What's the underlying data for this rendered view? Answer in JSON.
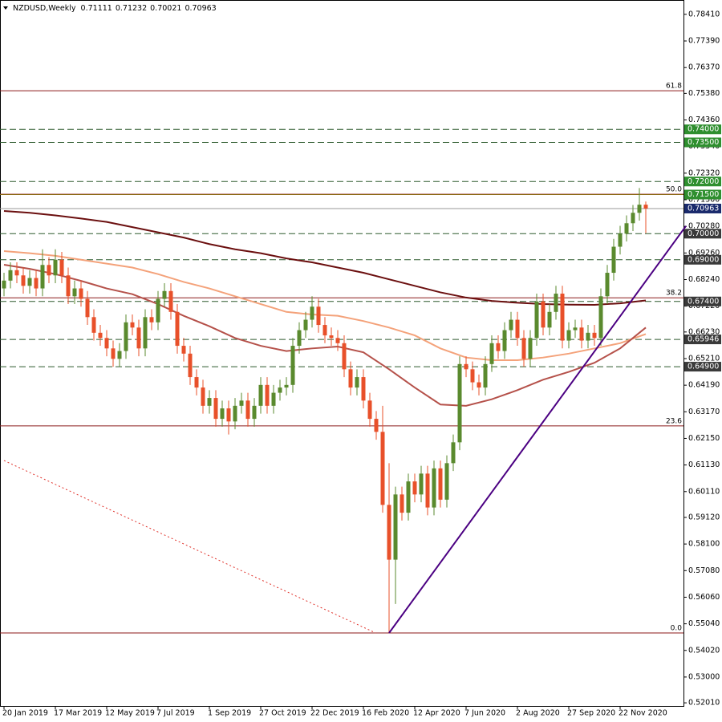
{
  "chart_data": {
    "type": "candlestick",
    "symbol": "NZDUSD,Weekly",
    "categories": [
      "20 Jan 2019",
      null,
      null,
      null,
      null,
      null,
      null,
      null,
      "17 Mar 2019",
      null,
      null,
      null,
      null,
      null,
      null,
      null,
      "12 May 2019",
      null,
      null,
      null,
      null,
      null,
      null,
      null,
      "7 Jul 2019",
      null,
      null,
      null,
      null,
      null,
      null,
      null,
      "1 Sep 2019",
      null,
      null,
      null,
      null,
      null,
      null,
      null,
      "27 Oct 2019",
      null,
      null,
      null,
      null,
      null,
      null,
      null,
      "22 Dec 2019",
      null,
      null,
      null,
      null,
      null,
      null,
      null,
      "16 Feb 2020",
      null,
      null,
      null,
      null,
      null,
      null,
      null,
      "12 Apr 2020",
      null,
      null,
      null,
      null,
      null,
      null,
      null,
      "7 Jun 2020",
      null,
      null,
      null,
      null,
      null,
      null,
      null,
      "2 Aug 2020",
      null,
      null,
      null,
      null,
      null,
      null,
      null,
      "27 Sep 2020",
      null,
      null,
      null,
      null,
      null,
      null,
      null,
      "22 Nov 2020",
      null,
      null,
      null,
      null
    ],
    "open": [
      0.679,
      0.682,
      0.686,
      0.684,
      0.68,
      0.683,
      0.679,
      0.688,
      0.684,
      0.69,
      0.684,
      0.676,
      0.679,
      0.675,
      0.668,
      0.662,
      0.66,
      0.656,
      0.652,
      0.655,
      0.666,
      0.664,
      0.656,
      0.668,
      0.666,
      0.675,
      0.678,
      0.67,
      0.657,
      0.654,
      0.645,
      0.641,
      0.634,
      0.637,
      0.629,
      0.633,
      0.628,
      0.634,
      0.636,
      0.629,
      0.634,
      0.642,
      0.634,
      0.639,
      0.641,
      0.642,
      0.657,
      0.663,
      0.667,
      0.672,
      0.665,
      0.661,
      0.66,
      0.658,
      0.648,
      0.641,
      0.645,
      0.636,
      0.629,
      0.624,
      0.596,
      0.575,
      0.6,
      0.593,
      0.605,
      0.6,
      0.608,
      0.595,
      0.61,
      0.598,
      0.612,
      0.62,
      0.65,
      0.648,
      0.643,
      0.641,
      0.65,
      0.658,
      0.655,
      0.663,
      0.667,
      0.66,
      0.652,
      0.66,
      0.674,
      0.664,
      0.67,
      0.677,
      0.659,
      0.663,
      0.664,
      0.659,
      0.662,
      0.66,
      0.676,
      0.685,
      0.695,
      0.7,
      0.704,
      0.708,
      0.71111
    ],
    "high": [
      0.685,
      0.689,
      0.689,
      0.687,
      0.686,
      0.686,
      0.694,
      0.691,
      0.694,
      0.693,
      0.687,
      0.682,
      0.682,
      0.678,
      0.671,
      0.665,
      0.663,
      0.659,
      0.658,
      0.669,
      0.669,
      0.667,
      0.671,
      0.671,
      0.678,
      0.681,
      0.681,
      0.673,
      0.66,
      0.657,
      0.648,
      0.644,
      0.64,
      0.64,
      0.636,
      0.636,
      0.637,
      0.639,
      0.639,
      0.637,
      0.645,
      0.645,
      0.642,
      0.644,
      0.645,
      0.66,
      0.666,
      0.67,
      0.676,
      0.675,
      0.668,
      0.664,
      0.663,
      0.661,
      0.651,
      0.648,
      0.648,
      0.639,
      0.632,
      0.634,
      0.612,
      0.603,
      0.603,
      0.608,
      0.608,
      0.611,
      0.611,
      0.613,
      0.613,
      0.615,
      0.623,
      0.653,
      0.653,
      0.651,
      0.646,
      0.653,
      0.661,
      0.661,
      0.666,
      0.67,
      0.67,
      0.663,
      0.663,
      0.677,
      0.677,
      0.673,
      0.68,
      0.68,
      0.666,
      0.667,
      0.667,
      0.665,
      0.665,
      0.679,
      0.688,
      0.698,
      0.703,
      0.707,
      0.711,
      0.7175,
      0.71232
    ],
    "low": [
      0.676,
      0.679,
      0.681,
      0.677,
      0.677,
      0.676,
      0.676,
      0.681,
      0.681,
      0.681,
      0.673,
      0.673,
      0.672,
      0.665,
      0.659,
      0.657,
      0.653,
      0.649,
      0.649,
      0.652,
      0.661,
      0.653,
      0.653,
      0.663,
      0.663,
      0.672,
      0.667,
      0.654,
      0.651,
      0.642,
      0.638,
      0.631,
      0.631,
      0.626,
      0.626,
      0.623,
      0.625,
      0.631,
      0.626,
      0.626,
      0.631,
      0.631,
      0.631,
      0.636,
      0.638,
      0.639,
      0.654,
      0.66,
      0.664,
      0.662,
      0.658,
      0.657,
      0.655,
      0.645,
      0.638,
      0.638,
      0.633,
      0.626,
      0.621,
      0.593,
      0.547,
      0.558,
      0.59,
      0.59,
      0.597,
      0.597,
      0.592,
      0.592,
      0.595,
      0.595,
      0.609,
      0.617,
      0.645,
      0.64,
      0.638,
      0.638,
      0.647,
      0.652,
      0.652,
      0.66,
      0.657,
      0.649,
      0.649,
      0.657,
      0.661,
      0.661,
      0.667,
      0.656,
      0.656,
      0.66,
      0.656,
      0.656,
      0.657,
      0.657,
      0.673,
      0.682,
      0.692,
      0.697,
      0.701,
      0.705,
      0.70021
    ],
    "close": [
      0.682,
      0.686,
      0.684,
      0.68,
      0.683,
      0.679,
      0.688,
      0.684,
      0.69,
      0.684,
      0.676,
      0.679,
      0.675,
      0.668,
      0.662,
      0.66,
      0.656,
      0.652,
      0.655,
      0.666,
      0.664,
      0.656,
      0.668,
      0.666,
      0.675,
      0.678,
      0.67,
      0.657,
      0.654,
      0.645,
      0.641,
      0.634,
      0.637,
      0.629,
      0.633,
      0.628,
      0.634,
      0.636,
      0.629,
      0.634,
      0.642,
      0.634,
      0.639,
      0.641,
      0.642,
      0.657,
      0.663,
      0.667,
      0.672,
      0.665,
      0.661,
      0.66,
      0.658,
      0.648,
      0.641,
      0.645,
      0.636,
      0.629,
      0.624,
      0.596,
      0.575,
      0.6,
      0.593,
      0.605,
      0.6,
      0.608,
      0.595,
      0.61,
      0.598,
      0.612,
      0.62,
      0.65,
      0.648,
      0.643,
      0.641,
      0.65,
      0.658,
      0.655,
      0.663,
      0.667,
      0.66,
      0.652,
      0.66,
      0.674,
      0.664,
      0.67,
      0.677,
      0.659,
      0.663,
      0.664,
      0.659,
      0.662,
      0.66,
      0.676,
      0.685,
      0.695,
      0.7,
      0.704,
      0.708,
      0.71111,
      0.70963
    ],
    "up_color": "#5a8a2e",
    "down_color": "#e8502a",
    "ylim": [
      0.5189,
      0.7896
    ],
    "yticks": [
      {
        "value": 0.7841,
        "label": "0.78410"
      },
      {
        "value": 0.7739,
        "label": "0.77390"
      },
      {
        "value": 0.7637,
        "label": "0.76370"
      },
      {
        "value": 0.7538,
        "label": "0.75380"
      },
      {
        "value": 0.7436,
        "label": "0.74360"
      },
      {
        "value": 0.7334,
        "label": "0.73340"
      },
      {
        "value": 0.7232,
        "label": "0.72320"
      },
      {
        "value": 0.713,
        "label": "0.71300"
      },
      {
        "value": 0.7028,
        "label": "0.70280"
      },
      {
        "value": 0.6926,
        "label": "0.69260"
      },
      {
        "value": 0.6824,
        "label": "0.68240"
      },
      {
        "value": 0.6722,
        "label": "0.67220"
      },
      {
        "value": 0.6623,
        "label": "0.66230"
      },
      {
        "value": 0.6521,
        "label": "0.65210"
      },
      {
        "value": 0.6419,
        "label": "0.64190"
      },
      {
        "value": 0.6317,
        "label": "0.63170"
      },
      {
        "value": 0.6215,
        "label": "0.62150"
      },
      {
        "value": 0.6113,
        "label": "0.61130"
      },
      {
        "value": 0.6011,
        "label": "0.60110"
      },
      {
        "value": 0.5912,
        "label": "0.59120"
      },
      {
        "value": 0.581,
        "label": "0.58100"
      },
      {
        "value": 0.5708,
        "label": "0.57080"
      },
      {
        "value": 0.5606,
        "label": "0.56060"
      },
      {
        "value": 0.5504,
        "label": "0.55040"
      },
      {
        "value": 0.5402,
        "label": "0.54020"
      },
      {
        "value": 0.53,
        "label": "0.53000"
      },
      {
        "value": 0.5201,
        "label": "0.52010"
      }
    ],
    "moving_averages": [
      {
        "color": "#6b0f0f",
        "x": [
          0,
          4,
          8,
          12,
          16,
          20,
          24,
          28,
          32,
          36,
          40,
          44,
          48,
          52,
          56,
          60,
          64,
          68,
          72,
          76,
          80,
          84,
          88,
          92,
          96,
          100
        ],
        "values": [
          0.7087,
          0.708,
          0.707,
          0.7058,
          0.7045,
          0.7025,
          0.7005,
          0.6985,
          0.696,
          0.694,
          0.6925,
          0.6905,
          0.689,
          0.687,
          0.685,
          0.6825,
          0.68,
          0.6775,
          0.6755,
          0.6742,
          0.6735,
          0.673,
          0.6728,
          0.6727,
          0.6733,
          0.6744
        ]
      },
      {
        "color": "#f4a27a",
        "x": [
          0,
          4,
          8,
          12,
          16,
          20,
          24,
          28,
          32,
          36,
          40,
          44,
          48,
          52,
          56,
          60,
          64,
          68,
          72,
          76,
          80,
          84,
          88,
          92,
          96,
          100
        ],
        "values": [
          0.6933,
          0.6925,
          0.6915,
          0.69,
          0.6885,
          0.687,
          0.6845,
          0.6815,
          0.679,
          0.676,
          0.673,
          0.67,
          0.669,
          0.6685,
          0.6665,
          0.664,
          0.661,
          0.656,
          0.6525,
          0.6515,
          0.6515,
          0.6525,
          0.654,
          0.656,
          0.658,
          0.6615
        ]
      },
      {
        "color": "#b5514a",
        "x": [
          0,
          4,
          8,
          12,
          16,
          20,
          24,
          28,
          32,
          36,
          40,
          44,
          48,
          52,
          56,
          60,
          64,
          68,
          72,
          76,
          80,
          84,
          88,
          92,
          96,
          100
        ],
        "values": [
          0.6881,
          0.6865,
          0.6845,
          0.6819,
          0.679,
          0.6768,
          0.673,
          0.6685,
          0.6645,
          0.66,
          0.657,
          0.655,
          0.656,
          0.6567,
          0.6545,
          0.648,
          0.641,
          0.6345,
          0.634,
          0.6365,
          0.64,
          0.644,
          0.647,
          0.6505,
          0.656,
          0.664
        ]
      }
    ],
    "levels": [
      {
        "value": 0.74,
        "label": "0.74000",
        "style": "dashed",
        "color": "#2d5a2d",
        "box": "#2f8f2f"
      },
      {
        "value": 0.735,
        "label": "0.73500",
        "style": "dashed",
        "color": "#2d5a2d",
        "box": "#2f8f2f"
      },
      {
        "value": 0.72,
        "label": "0.72000",
        "style": "dashed",
        "color": "#2d5a2d",
        "box": "#2f8f2f"
      },
      {
        "value": 0.715,
        "label": "0.71500",
        "style": "solid",
        "color": "#8b6914",
        "box": "#2f8f2f"
      },
      {
        "value": 0.7,
        "label": "0.70000",
        "style": "dashed",
        "color": "#2d5a2d",
        "box": "#3a3a3a"
      },
      {
        "value": 0.69,
        "label": "0.69000",
        "style": "dashed",
        "color": "#2d5a2d",
        "box": "#3a3a3a"
      },
      {
        "value": 0.674,
        "label": "0.67400",
        "style": "dashed",
        "color": "#2d5a2d",
        "box": "#3a3a3a"
      },
      {
        "value": 0.65946,
        "label": "0.65946",
        "style": "dashed",
        "color": "#2d5a2d",
        "box": "#3a3a3a"
      },
      {
        "value": 0.649,
        "label": "0.64900",
        "style": "dashed",
        "color": "#2d5a2d",
        "box": "#3a3a3a"
      }
    ],
    "price_line_color": "#9a9a9a",
    "price_box_color": "#1a2a6c",
    "fibonacci": {
      "color": "#8b1a1a",
      "levels": [
        {
          "value": 0.7548,
          "label": "61.8"
        },
        {
          "value": 0.7151,
          "label": "50.0"
        },
        {
          "value": 0.6754,
          "label": "38.2"
        },
        {
          "value": 0.6263,
          "label": "23.6"
        },
        {
          "value": 0.5469,
          "label": "0.0"
        }
      ]
    },
    "trendlines": [
      {
        "color": "#4b0082",
        "style": "solid",
        "x": [
          60,
          106.25
        ],
        "y": [
          0.5469,
          0.7029
        ]
      },
      {
        "color": "#e0312a",
        "style": "dotted",
        "x": [
          0,
          57.9
        ],
        "y": [
          0.613,
          0.5469
        ]
      }
    ]
  }
}
